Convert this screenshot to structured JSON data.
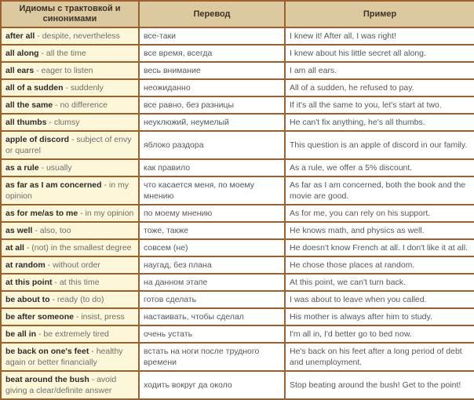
{
  "colors": {
    "border": "#9b602b",
    "header_background": "#dcc9a0",
    "idiom_column_background": "#fcf7d9",
    "cell_background": "#ffffff",
    "idiom_text": "#2b2b2b",
    "secondary_text": "#585858"
  },
  "table": {
    "separator": " - ",
    "headers": {
      "idioms": "Идиомы с трактовкой и синонимами",
      "translation": "Перевод",
      "example": "Пример"
    },
    "rows": [
      {
        "idiom": "after all",
        "definition": "despite, nevertheless",
        "translation": "все-таки",
        "example": "I knew it! After all, I was right!"
      },
      {
        "idiom": "all along",
        "definition": "all the time",
        "translation": "все время, всегда",
        "example": "I knew about his little secret all along."
      },
      {
        "idiom": "all ears",
        "definition": "eager to listen",
        "translation": "весь внимание",
        "example": "I am all ears."
      },
      {
        "idiom": "all of a sudden",
        "definition": "suddenly",
        "translation": "неожиданно",
        "example": "All of a sudden, he refused to pay."
      },
      {
        "idiom": "all the same",
        "definition": "no difference",
        "translation": "все равно, без разницы",
        "example": "If it's all the same to you, let's start at two."
      },
      {
        "idiom": "all thumbs",
        "definition": "clumsy",
        "translation": "неуклюжий, неумелый",
        "example": "He can't fix anything, he's all thumbs."
      },
      {
        "idiom": "apple of discord",
        "definition": "subject of envy or quarrel",
        "translation": "яблоко раздора",
        "example": "This question is an apple of discord in our family."
      },
      {
        "idiom": "as a rule",
        "definition": "usually",
        "translation": "как правило",
        "example": "As a rule, we offer a 5% discount."
      },
      {
        "idiom": "as far as I am concerned",
        "definition": "in my opinion",
        "translation": "что касается меня, по моему мнению",
        "example": "As far as I am concerned, both the book and the movie are good."
      },
      {
        "idiom": "as for me/as to me",
        "definition": "in my opinion",
        "translation": "по моему мнению",
        "example": "As for me, you can rely on his support."
      },
      {
        "idiom": "as well",
        "definition": "also, too",
        "translation": "тоже, также",
        "example": "He knows math, and physics as well."
      },
      {
        "idiom": "at all",
        "definition": "(not) in the smallest degree",
        "translation": "совсем (не)",
        "example": "He doesn't know French at all. I don't like it at all."
      },
      {
        "idiom": "at random",
        "definition": "without order",
        "translation": "наугад, без плана",
        "example": "He chose those places at random."
      },
      {
        "idiom": "at this point",
        "definition": "at this time",
        "translation": "на данном этапе",
        "example": "At this point, we can't turn back."
      },
      {
        "idiom": "be about to",
        "definition": "ready (to do)",
        "translation": "готов сделать",
        "example": "I was about to leave when you called."
      },
      {
        "idiom": "be after someone",
        "definition": "insist, press",
        "translation": "настаивать, чтобы сделал",
        "example": "His mother is always after him to study."
      },
      {
        "idiom": "be all in",
        "definition": "be extremely tired",
        "translation": "очень устать",
        "example": "I'm all in, I'd better go to bed now."
      },
      {
        "idiom": "be back on one's feet",
        "definition": "healthy again or better financially",
        "translation": "встать на ноги после трудного времени",
        "example": "He's back on his feet after a long period of debt and unemployment."
      },
      {
        "idiom": "beat around the bush",
        "definition": "avoid giving a clear/definite answer",
        "translation": "ходить вокруг да около",
        "example": "Stop beating around the bush! Get to the point!"
      }
    ]
  }
}
